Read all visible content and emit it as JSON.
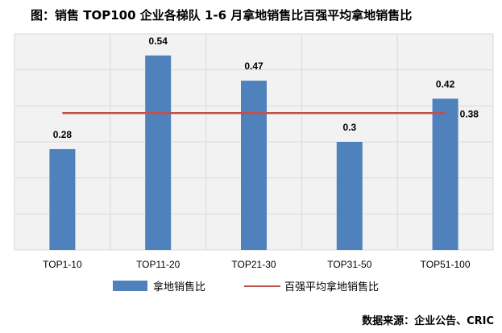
{
  "title": "图：销售 TOP100 企业各梯队 1-6 月拿地销售比百强平均拿地销售比",
  "source": "数据来源：企业公告、CRIC",
  "chart_data": {
    "type": "bar",
    "title": "图：销售 TOP100 企业各梯队 1-6 月拿地销售比百强平均拿地销售比",
    "categories": [
      "TOP1-10",
      "TOP11-20",
      "TOP21-30",
      "TOP31-50",
      "TOP51-100"
    ],
    "series": [
      {
        "name": "拿地销售比",
        "values": [
          0.28,
          0.54,
          0.47,
          0.3,
          0.42
        ],
        "color": "#4f81bd"
      }
    ],
    "reference_line": {
      "name": "百强平均拿地销售比",
      "value": 0.38,
      "color": "#c0504d"
    },
    "ylim": [
      0,
      0.6
    ],
    "y_tick_step": 0.1,
    "y_tick_labels_shown": false,
    "grid": true,
    "legend": "bottom",
    "data_labels": true
  }
}
